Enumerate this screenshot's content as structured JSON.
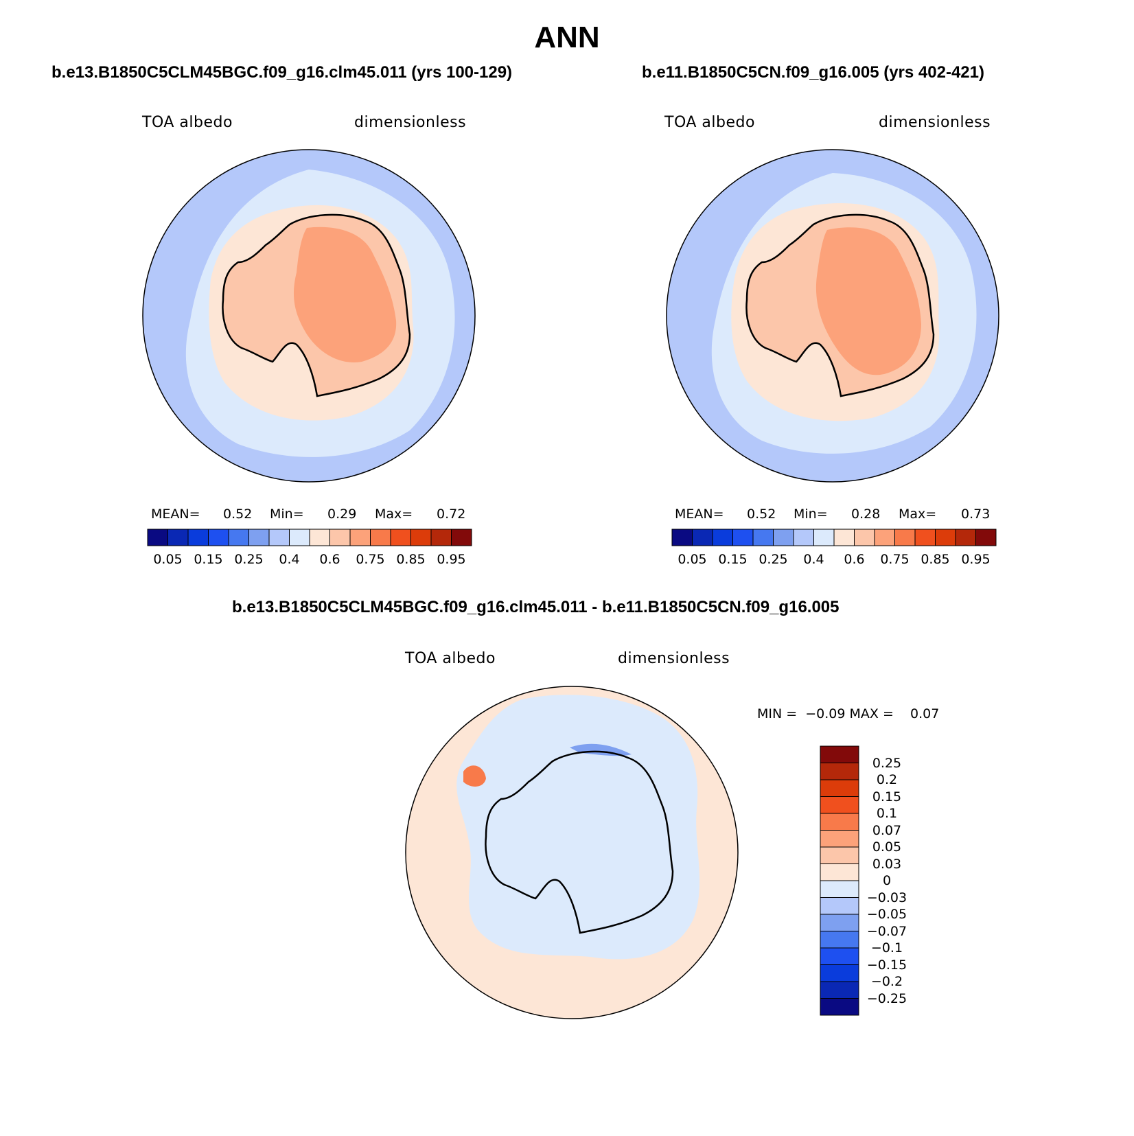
{
  "title": "ANN",
  "panels": [
    {
      "case": "b.e13.B1850C5CLM45BGC.f09_g16.clm45.011 (yrs 100-129)",
      "variable": "TOA albedo",
      "units": "dimensionless",
      "mean_label": "MEAN=",
      "mean": "0.52",
      "min_label": "Min=",
      "min": "0.29",
      "max_label": "Max=",
      "max": "0.72"
    },
    {
      "case": "b.e11.B1850C5CN.f09_g16.005 (yrs 402-421)",
      "variable": "TOA albedo",
      "units": "dimensionless",
      "mean_label": "MEAN=",
      "mean": "0.52",
      "min_label": "Min=",
      "min": "0.28",
      "max_label": "Max=",
      "max": "0.73"
    }
  ],
  "difference": {
    "case": "b.e13.B1850C5CLM45BGC.f09_g16.clm45.011 - b.e11.B1850C5CN.f09_g16.005",
    "variable": "TOA albedo",
    "units": "dimensionless",
    "minmax_text": "MIN =  −0.09 MAX =    0.07"
  },
  "colorbar_abs": {
    "ticks": [
      "0.05",
      "0.15",
      "0.25",
      "0.4",
      "0.6",
      "0.75",
      "0.85",
      "0.95"
    ],
    "colors": [
      "#0a0a82",
      "#0a28b4",
      "#0a3cdc",
      "#1e50f0",
      "#4678f0",
      "#7ea0f0",
      "#b4c8fa",
      "#dceafc",
      "#fde6d6",
      "#fcc6aa",
      "#fca27a",
      "#f87a4a",
      "#f0501e",
      "#dc3c0a",
      "#b4280a",
      "#820a0a"
    ]
  },
  "colorbar_diff": {
    "labels": [
      "0.25",
      "0.2",
      "0.15",
      "0.1",
      "0.07",
      "0.05",
      "0.03",
      "0",
      "−0.03",
      "−0.05",
      "−0.07",
      "−0.1",
      "−0.15",
      "−0.2",
      "−0.25"
    ],
    "colors": [
      "#820a0a",
      "#b4280a",
      "#dc3c0a",
      "#f0501e",
      "#f87a4a",
      "#fca27a",
      "#fcc6aa",
      "#fde6d6",
      "#dceafc",
      "#b4c8fa",
      "#7ea0f0",
      "#4678f0",
      "#1e50f0",
      "#0a3cdc",
      "#0a28b4",
      "#0a0a82"
    ]
  },
  "map_colors": {
    "ocean_outer": "#b4c8fa",
    "ocean_inner": "#dceafc",
    "seaice_edge": "#fde6d6",
    "land_low": "#fcc6aa",
    "land_high": "#fca27a",
    "diff_pos": "#fde6d6",
    "diff_neg": "#dceafc",
    "diff_strong_pos": "#f87a4a",
    "diff_strong_neg": "#7ea0f0"
  }
}
